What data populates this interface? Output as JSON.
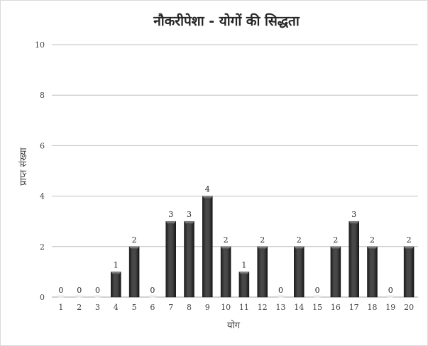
{
  "chart_data": {
    "type": "bar",
    "title": "नौकरीपेशा - योगों की सिद्धता",
    "xlabel": "योग",
    "ylabel": "प्राप्त संख्या",
    "categories": [
      "1",
      "2",
      "3",
      "4",
      "5",
      "6",
      "7",
      "8",
      "9",
      "10",
      "11",
      "12",
      "13",
      "14",
      "15",
      "16",
      "17",
      "18",
      "19",
      "20"
    ],
    "values": [
      0,
      0,
      0,
      1,
      2,
      0,
      3,
      3,
      4,
      2,
      1,
      2,
      0,
      2,
      0,
      2,
      3,
      2,
      0,
      2
    ],
    "ylim": [
      0,
      10
    ],
    "yticks": [
      0,
      2,
      4,
      6,
      8,
      10
    ],
    "grid": true,
    "legend": "none",
    "bar_color": "#3a3a3a"
  }
}
